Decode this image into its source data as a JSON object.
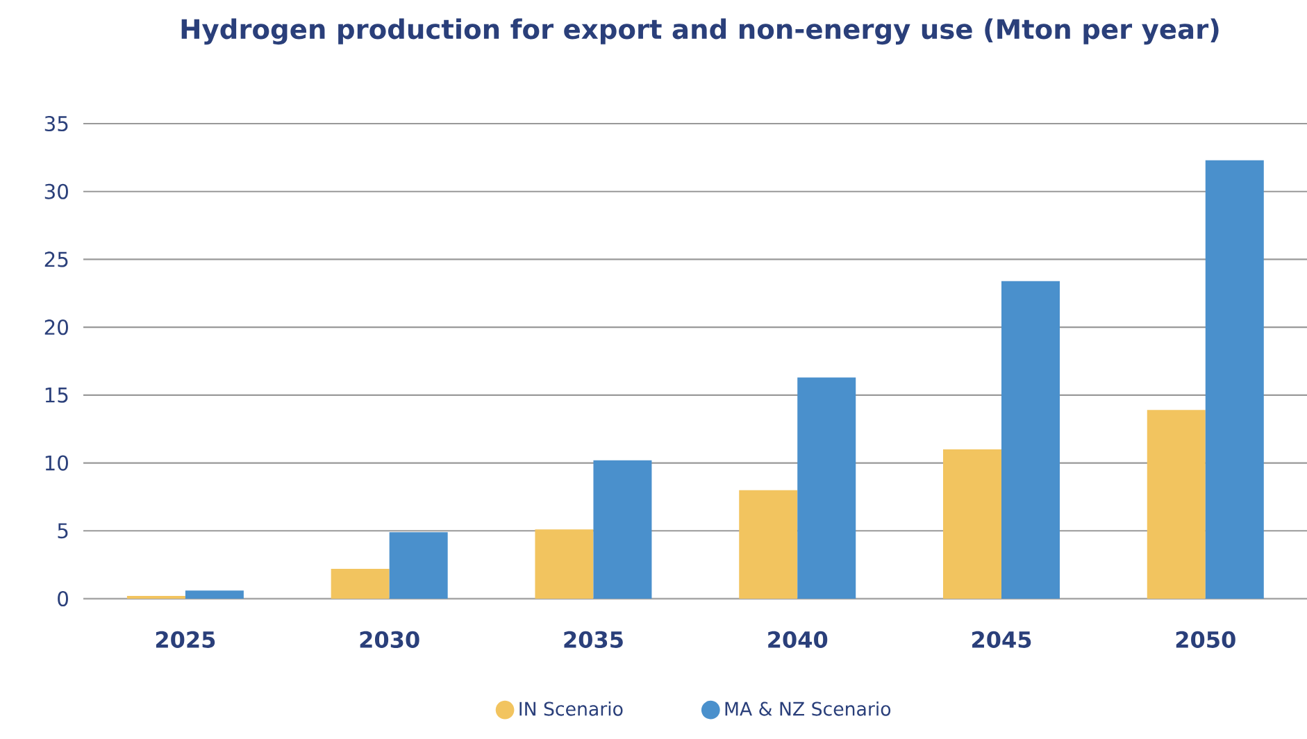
{
  "chart_data": {
    "type": "bar",
    "title": "Hydrogen production for export and non-energy use (Mton per year)",
    "categories": [
      "2025",
      "2030",
      "2035",
      "2040",
      "2045",
      "2050"
    ],
    "series": [
      {
        "name": "IN Scenario",
        "color": "#f2c45f",
        "values": [
          0.2,
          2.2,
          5.1,
          8.0,
          11.0,
          13.9
        ]
      },
      {
        "name": "MA & NZ Scenario",
        "color": "#4a90cc",
        "values": [
          0.6,
          4.9,
          10.2,
          16.3,
          23.4,
          32.3
        ]
      }
    ],
    "ylim": [
      0,
      35
    ],
    "yticks": [
      0,
      5,
      10,
      15,
      20,
      25,
      30,
      35
    ],
    "grid": "y",
    "legend": "bottom"
  }
}
